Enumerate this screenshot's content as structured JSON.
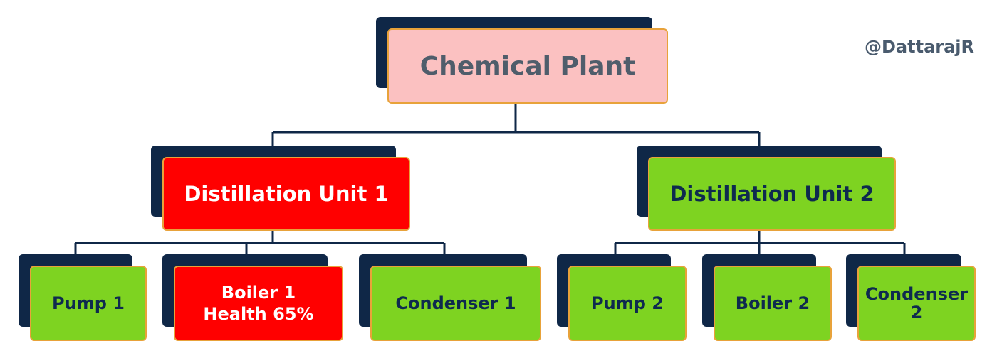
{
  "credit": "@DattarajR",
  "root": {
    "label": "Chemical Plant"
  },
  "units": [
    {
      "label": "Distillation Unit 1",
      "status": "alert",
      "components": [
        {
          "lines": [
            "Pump 1"
          ],
          "status": "normal"
        },
        {
          "lines": [
            "Boiler 1",
            "Health 65%"
          ],
          "status": "alert",
          "health_percent": 65
        },
        {
          "lines": [
            "Condenser 1"
          ],
          "status": "normal"
        }
      ]
    },
    {
      "label": "Distillation Unit 2",
      "status": "normal",
      "components": [
        {
          "lines": [
            "Pump 2"
          ],
          "status": "normal"
        },
        {
          "lines": [
            "Boiler 2"
          ],
          "status": "normal"
        },
        {
          "lines": [
            "Condenser",
            "2"
          ],
          "status": "normal"
        }
      ]
    }
  ],
  "colors": {
    "normal": "#7ed321",
    "alert": "#ff0000",
    "root": "#fbc1c1",
    "shadow": "#0f2747",
    "connector": "#0f2747"
  }
}
